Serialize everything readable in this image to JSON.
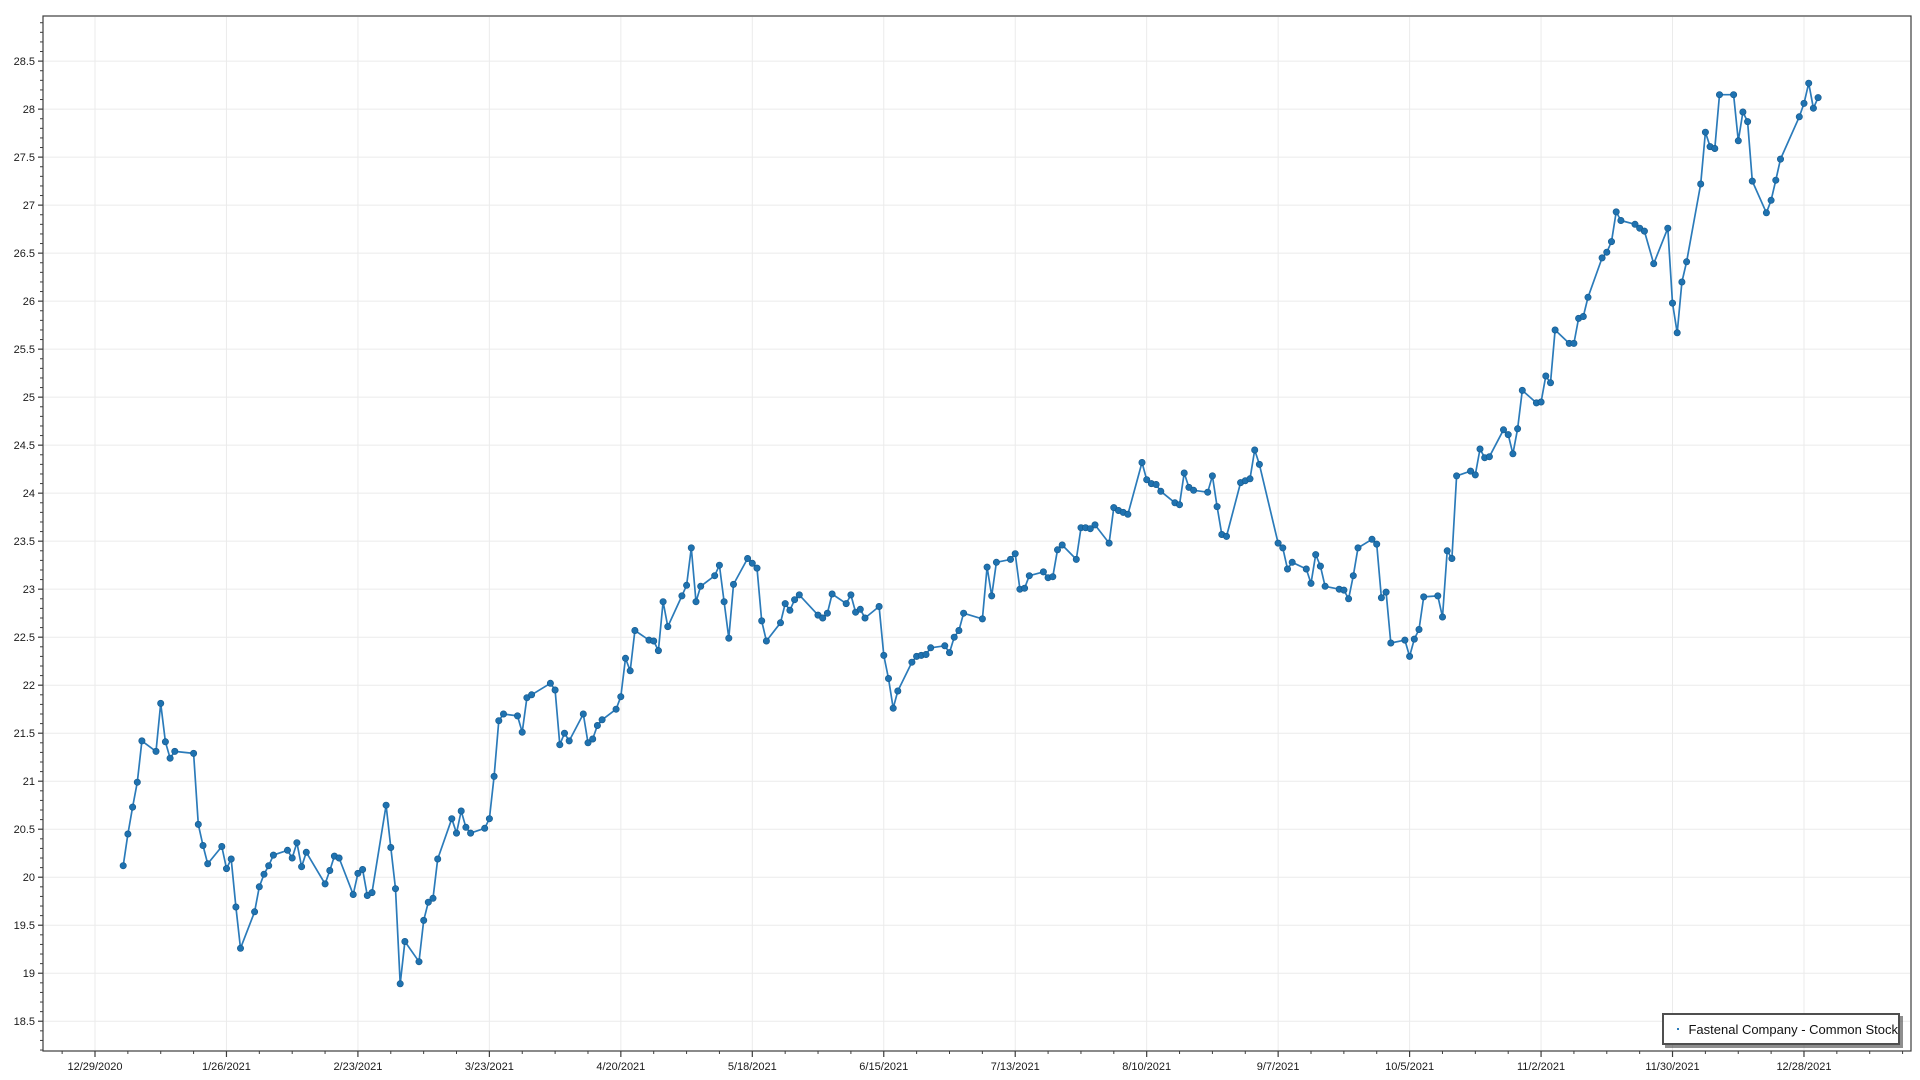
{
  "chart_data": {
    "type": "line",
    "title": "",
    "legend": {
      "position": "bottom-right",
      "border": true
    },
    "grid": true,
    "colors": {
      "line": "#2b7bba",
      "marker": "#1f72b0",
      "marker_edge": "#15598c",
      "gridline": "#ebebeb",
      "axis": "#3c3c3c",
      "label_text": "#1a1a1a"
    },
    "x_axis": {
      "origin_date": "12/29/2020",
      "tick_labels": [
        "12/29/2020",
        "1/26/2021",
        "2/23/2021",
        "3/23/2021",
        "4/20/2021",
        "5/18/2021",
        "6/15/2021",
        "7/13/2021",
        "8/10/2021",
        "9/7/2021",
        "10/5/2021",
        "11/2/2021",
        "11/30/2021",
        "12/28/2021"
      ],
      "minor_tick_interval_days": 7
    },
    "y_axis": {
      "ticks": [
        18.5,
        19,
        19.5,
        20,
        20.5,
        21,
        21.5,
        22,
        22.5,
        23,
        23.5,
        24,
        24.5,
        25,
        25.5,
        26,
        26.5,
        27,
        27.5,
        28,
        28.5
      ],
      "minor_tick_interval": 0.1,
      "range": [
        18.19,
        28.97
      ]
    },
    "series": [
      {
        "name": "Fastenal Company - Common Stock",
        "marker": "circle",
        "points": [
          [
            "1/4/2021",
            20.12
          ],
          [
            "1/5/2021",
            20.45
          ],
          [
            "1/6/2021",
            20.73
          ],
          [
            "1/7/2021",
            20.99
          ],
          [
            "1/8/2021",
            21.42
          ],
          [
            "1/11/2021",
            21.31
          ],
          [
            "1/12/2021",
            21.81
          ],
          [
            "1/13/2021",
            21.41
          ],
          [
            "1/14/2021",
            21.24
          ],
          [
            "1/15/2021",
            21.31
          ],
          [
            "1/19/2021",
            21.29
          ],
          [
            "1/20/2021",
            20.55
          ],
          [
            "1/21/2021",
            20.33
          ],
          [
            "1/22/2021",
            20.14
          ],
          [
            "1/25/2021",
            20.32
          ],
          [
            "1/26/2021",
            20.09
          ],
          [
            "1/27/2021",
            20.19
          ],
          [
            "1/28/2021",
            19.69
          ],
          [
            "1/29/2021",
            19.26
          ],
          [
            "2/1/2021",
            19.64
          ],
          [
            "2/2/2021",
            19.9
          ],
          [
            "2/3/2021",
            20.03
          ],
          [
            "2/4/2021",
            20.12
          ],
          [
            "2/5/2021",
            20.23
          ],
          [
            "2/8/2021",
            20.28
          ],
          [
            "2/9/2021",
            20.2
          ],
          [
            "2/10/2021",
            20.36
          ],
          [
            "2/11/2021",
            20.11
          ],
          [
            "2/12/2021",
            20.26
          ],
          [
            "2/16/2021",
            19.93
          ],
          [
            "2/17/2021",
            20.07
          ],
          [
            "2/18/2021",
            20.22
          ],
          [
            "2/19/2021",
            20.2
          ],
          [
            "2/22/2021",
            19.82
          ],
          [
            "2/23/2021",
            20.04
          ],
          [
            "2/24/2021",
            20.08
          ],
          [
            "2/25/2021",
            19.81
          ],
          [
            "2/26/2021",
            19.84
          ],
          [
            "3/1/2021",
            20.75
          ],
          [
            "3/2/2021",
            20.31
          ],
          [
            "3/3/2021",
            19.88
          ],
          [
            "3/4/2021",
            18.89
          ],
          [
            "3/5/2021",
            19.33
          ],
          [
            "3/8/2021",
            19.12
          ],
          [
            "3/9/2021",
            19.55
          ],
          [
            "3/10/2021",
            19.74
          ],
          [
            "3/11/2021",
            19.78
          ],
          [
            "3/12/2021",
            20.19
          ],
          [
            "3/15/2021",
            20.61
          ],
          [
            "3/16/2021",
            20.46
          ],
          [
            "3/17/2021",
            20.69
          ],
          [
            "3/18/2021",
            20.52
          ],
          [
            "3/19/2021",
            20.46
          ],
          [
            "3/22/2021",
            20.51
          ],
          [
            "3/23/2021",
            20.61
          ],
          [
            "3/24/2021",
            21.05
          ],
          [
            "3/25/2021",
            21.63
          ],
          [
            "3/26/2021",
            21.7
          ],
          [
            "3/29/2021",
            21.68
          ],
          [
            "3/30/2021",
            21.51
          ],
          [
            "3/31/2021",
            21.87
          ],
          [
            "4/1/2021",
            21.9
          ],
          [
            "4/5/2021",
            22.02
          ],
          [
            "4/6/2021",
            21.95
          ],
          [
            "4/7/2021",
            21.38
          ],
          [
            "4/8/2021",
            21.5
          ],
          [
            "4/9/2021",
            21.42
          ],
          [
            "4/12/2021",
            21.7
          ],
          [
            "4/13/2021",
            21.4
          ],
          [
            "4/14/2021",
            21.44
          ],
          [
            "4/15/2021",
            21.58
          ],
          [
            "4/16/2021",
            21.64
          ],
          [
            "4/19/2021",
            21.75
          ],
          [
            "4/20/2021",
            21.88
          ],
          [
            "4/21/2021",
            22.28
          ],
          [
            "4/22/2021",
            22.15
          ],
          [
            "4/23/2021",
            22.57
          ],
          [
            "4/26/2021",
            22.47
          ],
          [
            "4/27/2021",
            22.46
          ],
          [
            "4/28/2021",
            22.36
          ],
          [
            "4/29/2021",
            22.87
          ],
          [
            "4/30/2021",
            22.61
          ],
          [
            "5/3/2021",
            22.93
          ],
          [
            "5/4/2021",
            23.04
          ],
          [
            "5/5/2021",
            23.43
          ],
          [
            "5/6/2021",
            22.87
          ],
          [
            "5/7/2021",
            23.03
          ],
          [
            "5/10/2021",
            23.14
          ],
          [
            "5/11/2021",
            23.25
          ],
          [
            "5/12/2021",
            22.87
          ],
          [
            "5/13/2021",
            22.49
          ],
          [
            "5/14/2021",
            23.05
          ],
          [
            "5/17/2021",
            23.32
          ],
          [
            "5/18/2021",
            23.27
          ],
          [
            "5/19/2021",
            23.22
          ],
          [
            "5/20/2021",
            22.67
          ],
          [
            "5/21/2021",
            22.46
          ],
          [
            "5/24/2021",
            22.65
          ],
          [
            "5/25/2021",
            22.85
          ],
          [
            "5/26/2021",
            22.78
          ],
          [
            "5/27/2021",
            22.89
          ],
          [
            "5/28/2021",
            22.94
          ],
          [
            "6/1/2021",
            22.73
          ],
          [
            "6/2/2021",
            22.7
          ],
          [
            "6/3/2021",
            22.75
          ],
          [
            "6/4/2021",
            22.95
          ],
          [
            "6/7/2021",
            22.85
          ],
          [
            "6/8/2021",
            22.94
          ],
          [
            "6/9/2021",
            22.76
          ],
          [
            "6/10/2021",
            22.79
          ],
          [
            "6/11/2021",
            22.7
          ],
          [
            "6/14/2021",
            22.82
          ],
          [
            "6/15/2021",
            22.31
          ],
          [
            "6/16/2021",
            22.07
          ],
          [
            "6/17/2021",
            21.76
          ],
          [
            "6/18/2021",
            21.94
          ],
          [
            "6/21/2021",
            22.24
          ],
          [
            "6/22/2021",
            22.3
          ],
          [
            "6/23/2021",
            22.31
          ],
          [
            "6/24/2021",
            22.32
          ],
          [
            "6/25/2021",
            22.39
          ],
          [
            "6/28/2021",
            22.41
          ],
          [
            "6/29/2021",
            22.34
          ],
          [
            "6/30/2021",
            22.5
          ],
          [
            "7/1/2021",
            22.57
          ],
          [
            "7/2/2021",
            22.75
          ],
          [
            "7/6/2021",
            22.69
          ],
          [
            "7/7/2021",
            23.23
          ],
          [
            "7/8/2021",
            22.93
          ],
          [
            "7/9/2021",
            23.28
          ],
          [
            "7/12/2021",
            23.31
          ],
          [
            "7/13/2021",
            23.37
          ],
          [
            "7/14/2021",
            23.0
          ],
          [
            "7/15/2021",
            23.01
          ],
          [
            "7/16/2021",
            23.14
          ],
          [
            "7/19/2021",
            23.18
          ],
          [
            "7/20/2021",
            23.12
          ],
          [
            "7/21/2021",
            23.13
          ],
          [
            "7/22/2021",
            23.41
          ],
          [
            "7/23/2021",
            23.46
          ],
          [
            "7/26/2021",
            23.31
          ],
          [
            "7/27/2021",
            23.64
          ],
          [
            "7/28/2021",
            23.64
          ],
          [
            "7/29/2021",
            23.63
          ],
          [
            "7/30/2021",
            23.67
          ],
          [
            "8/2/2021",
            23.48
          ],
          [
            "8/3/2021",
            23.85
          ],
          [
            "8/4/2021",
            23.82
          ],
          [
            "8/5/2021",
            23.8
          ],
          [
            "8/6/2021",
            23.78
          ],
          [
            "8/9/2021",
            24.32
          ],
          [
            "8/10/2021",
            24.14
          ],
          [
            "8/11/2021",
            24.1
          ],
          [
            "8/12/2021",
            24.09
          ],
          [
            "8/13/2021",
            24.02
          ],
          [
            "8/16/2021",
            23.9
          ],
          [
            "8/17/2021",
            23.88
          ],
          [
            "8/18/2021",
            24.21
          ],
          [
            "8/19/2021",
            24.06
          ],
          [
            "8/20/2021",
            24.03
          ],
          [
            "8/23/2021",
            24.01
          ],
          [
            "8/24/2021",
            24.18
          ],
          [
            "8/25/2021",
            23.86
          ],
          [
            "8/26/2021",
            23.57
          ],
          [
            "8/27/2021",
            23.55
          ],
          [
            "8/30/2021",
            24.11
          ],
          [
            "8/31/2021",
            24.13
          ],
          [
            "9/1/2021",
            24.15
          ],
          [
            "9/2/2021",
            24.45
          ],
          [
            "9/3/2021",
            24.3
          ],
          [
            "9/7/2021",
            23.48
          ],
          [
            "9/8/2021",
            23.43
          ],
          [
            "9/9/2021",
            23.21
          ],
          [
            "9/10/2021",
            23.28
          ],
          [
            "9/13/2021",
            23.21
          ],
          [
            "9/14/2021",
            23.06
          ],
          [
            "9/15/2021",
            23.36
          ],
          [
            "9/16/2021",
            23.24
          ],
          [
            "9/17/2021",
            23.03
          ],
          [
            "9/20/2021",
            23.0
          ],
          [
            "9/21/2021",
            22.99
          ],
          [
            "9/22/2021",
            22.9
          ],
          [
            "9/23/2021",
            23.14
          ],
          [
            "9/24/2021",
            23.43
          ],
          [
            "9/27/2021",
            23.52
          ],
          [
            "9/28/2021",
            23.47
          ],
          [
            "9/29/2021",
            22.91
          ],
          [
            "9/30/2021",
            22.97
          ],
          [
            "10/1/2021",
            22.44
          ],
          [
            "10/4/2021",
            22.47
          ],
          [
            "10/5/2021",
            22.3
          ],
          [
            "10/6/2021",
            22.48
          ],
          [
            "10/7/2021",
            22.58
          ],
          [
            "10/8/2021",
            22.92
          ],
          [
            "10/11/2021",
            22.93
          ],
          [
            "10/12/2021",
            22.71
          ],
          [
            "10/13/2021",
            23.4
          ],
          [
            "10/14/2021",
            23.32
          ],
          [
            "10/15/2021",
            24.18
          ],
          [
            "10/18/2021",
            24.23
          ],
          [
            "10/19/2021",
            24.19
          ],
          [
            "10/20/2021",
            24.46
          ],
          [
            "10/21/2021",
            24.37
          ],
          [
            "10/22/2021",
            24.38
          ],
          [
            "10/25/2021",
            24.66
          ],
          [
            "10/26/2021",
            24.61
          ],
          [
            "10/27/2021",
            24.41
          ],
          [
            "10/28/2021",
            24.67
          ],
          [
            "10/29/2021",
            25.07
          ],
          [
            "11/1/2021",
            24.94
          ],
          [
            "11/2/2021",
            24.95
          ],
          [
            "11/3/2021",
            25.22
          ],
          [
            "11/4/2021",
            25.15
          ],
          [
            "11/5/2021",
            25.7
          ],
          [
            "11/8/2021",
            25.56
          ],
          [
            "11/9/2021",
            25.56
          ],
          [
            "11/10/2021",
            25.82
          ],
          [
            "11/11/2021",
            25.84
          ],
          [
            "11/12/2021",
            26.04
          ],
          [
            "11/15/2021",
            26.45
          ],
          [
            "11/16/2021",
            26.51
          ],
          [
            "11/17/2021",
            26.62
          ],
          [
            "11/18/2021",
            26.93
          ],
          [
            "11/19/2021",
            26.84
          ],
          [
            "11/22/2021",
            26.8
          ],
          [
            "11/23/2021",
            26.76
          ],
          [
            "11/24/2021",
            26.73
          ],
          [
            "11/26/2021",
            26.39
          ],
          [
            "11/29/2021",
            26.76
          ],
          [
            "11/30/2021",
            25.98
          ],
          [
            "12/1/2021",
            25.67
          ],
          [
            "12/2/2021",
            26.2
          ],
          [
            "12/3/2021",
            26.41
          ],
          [
            "12/6/2021",
            27.22
          ],
          [
            "12/7/2021",
            27.76
          ],
          [
            "12/8/2021",
            27.61
          ],
          [
            "12/9/2021",
            27.59
          ],
          [
            "12/10/2021",
            28.15
          ],
          [
            "12/13/2021",
            28.15
          ],
          [
            "12/14/2021",
            27.67
          ],
          [
            "12/15/2021",
            27.97
          ],
          [
            "12/16/2021",
            27.87
          ],
          [
            "12/17/2021",
            27.25
          ],
          [
            "12/20/2021",
            26.92
          ],
          [
            "12/21/2021",
            27.05
          ],
          [
            "12/22/2021",
            27.26
          ],
          [
            "12/23/2021",
            27.48
          ],
          [
            "12/27/2021",
            27.92
          ],
          [
            "12/28/2021",
            28.06
          ],
          [
            "12/29/2021",
            28.27
          ],
          [
            "12/30/2021",
            28.01
          ],
          [
            "12/31/2021",
            28.12
          ]
        ]
      }
    ]
  }
}
